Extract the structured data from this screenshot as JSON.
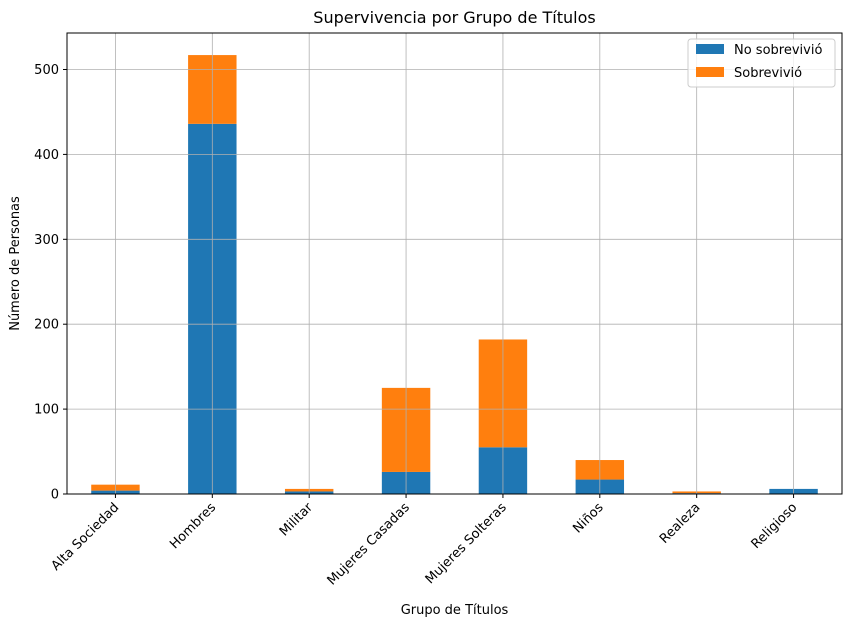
{
  "chart_data": {
    "type": "bar",
    "stacked": true,
    "title": "Supervivencia por Grupo de Títulos",
    "xlabel": "Grupo de Títulos",
    "ylabel": "Número de Personas",
    "categories": [
      "Alta Sociedad",
      "Hombres",
      "Militar",
      "Mujeres Casadas",
      "Mujeres Solteras",
      "Niños",
      "Realeza",
      "Religioso"
    ],
    "series": [
      {
        "name": "No sobrevivió",
        "color": "#1f77b4",
        "values": [
          4,
          436,
          3,
          26,
          55,
          17,
          1,
          6
        ]
      },
      {
        "name": "Sobrevivió",
        "color": "#ff7f0e",
        "values": [
          7,
          81,
          3,
          99,
          127,
          23,
          2,
          0
        ]
      }
    ],
    "ylim": [
      0,
      543
    ],
    "yticks": [
      0,
      100,
      200,
      300,
      400,
      500
    ],
    "grid": true,
    "legend_position": "top-right"
  }
}
